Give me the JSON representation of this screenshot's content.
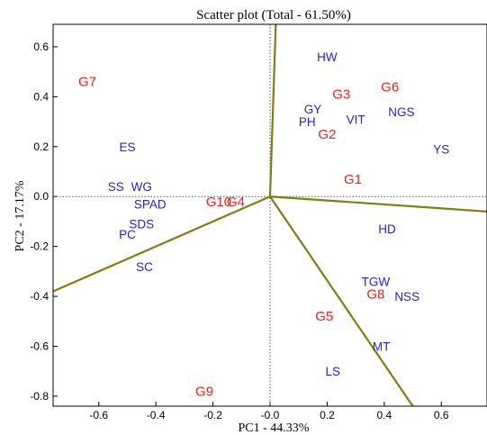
{
  "chart_data": {
    "type": "scatter",
    "title": "Scatter plot (Total - 61.50%)",
    "xlabel": "PC1 - 44.33%",
    "ylabel": "PC2 - 17.17%",
    "xlim": [
      -0.76,
      0.76
    ],
    "ylim": [
      -0.84,
      0.69
    ],
    "xticks": [
      "-0.6",
      "-0.4",
      "-0.2",
      "-0.0",
      "0.2",
      "0.4",
      "0.6"
    ],
    "xtick_values": [
      -0.6,
      -0.4,
      -0.2,
      0.0,
      0.2,
      0.4,
      0.6
    ],
    "yticks": [
      "0.6",
      "0.4",
      "0.2",
      "0.0",
      "-0.2",
      "-0.4",
      "-0.6",
      "-0.8"
    ],
    "ytick_values": [
      0.6,
      0.4,
      0.2,
      0.0,
      -0.2,
      -0.4,
      -0.6,
      -0.8
    ],
    "reference_lines": "dotted at x=0 and y=0",
    "genotypes": {
      "color": "#e8231d",
      "points": [
        {
          "label": "G1",
          "x": 0.29,
          "y": 0.07
        },
        {
          "label": "G2",
          "x": 0.2,
          "y": 0.25
        },
        {
          "label": "G3",
          "x": 0.25,
          "y": 0.41
        },
        {
          "label": "G4",
          "x": -0.12,
          "y": -0.02
        },
        {
          "label": "G5",
          "x": 0.19,
          "y": -0.48
        },
        {
          "label": "G6",
          "x": 0.42,
          "y": 0.44
        },
        {
          "label": "G7",
          "x": -0.64,
          "y": 0.46
        },
        {
          "label": "G8",
          "x": 0.37,
          "y": -0.39
        },
        {
          "label": "G9",
          "x": -0.23,
          "y": -0.78
        },
        {
          "label": "G10",
          "x": -0.18,
          "y": -0.02
        }
      ]
    },
    "variables": {
      "color": "#2424c2",
      "points": [
        {
          "label": "HW",
          "x": 0.2,
          "y": 0.56
        },
        {
          "label": "GY",
          "x": 0.15,
          "y": 0.35
        },
        {
          "label": "PH",
          "x": 0.13,
          "y": 0.3
        },
        {
          "label": "VIT",
          "x": 0.3,
          "y": 0.31
        },
        {
          "label": "NGS",
          "x": 0.46,
          "y": 0.34
        },
        {
          "label": "YS",
          "x": 0.6,
          "y": 0.19
        },
        {
          "label": "ES",
          "x": -0.5,
          "y": 0.2
        },
        {
          "label": "SS",
          "x": -0.54,
          "y": 0.04
        },
        {
          "label": "WG",
          "x": -0.45,
          "y": 0.04
        },
        {
          "label": "SPAD",
          "x": -0.42,
          "y": -0.03
        },
        {
          "label": "SDS",
          "x": -0.45,
          "y": -0.11
        },
        {
          "label": "PC",
          "x": -0.5,
          "y": -0.15
        },
        {
          "label": "SC",
          "x": -0.44,
          "y": -0.28
        },
        {
          "label": "HD",
          "x": 0.41,
          "y": -0.13
        },
        {
          "label": "TGW",
          "x": 0.37,
          "y": -0.34
        },
        {
          "label": "NSS",
          "x": 0.48,
          "y": -0.4
        },
        {
          "label": "MT",
          "x": 0.39,
          "y": -0.6
        },
        {
          "label": "LS",
          "x": 0.22,
          "y": -0.7
        }
      ]
    },
    "polygon_rays": {
      "color": "#7f7d14",
      "ends": [
        {
          "x": 0.02,
          "y": 0.69
        },
        {
          "x": 0.76,
          "y": -0.06
        },
        {
          "x": 0.5,
          "y": -0.84
        },
        {
          "x": -0.76,
          "y": -0.38
        }
      ]
    }
  }
}
